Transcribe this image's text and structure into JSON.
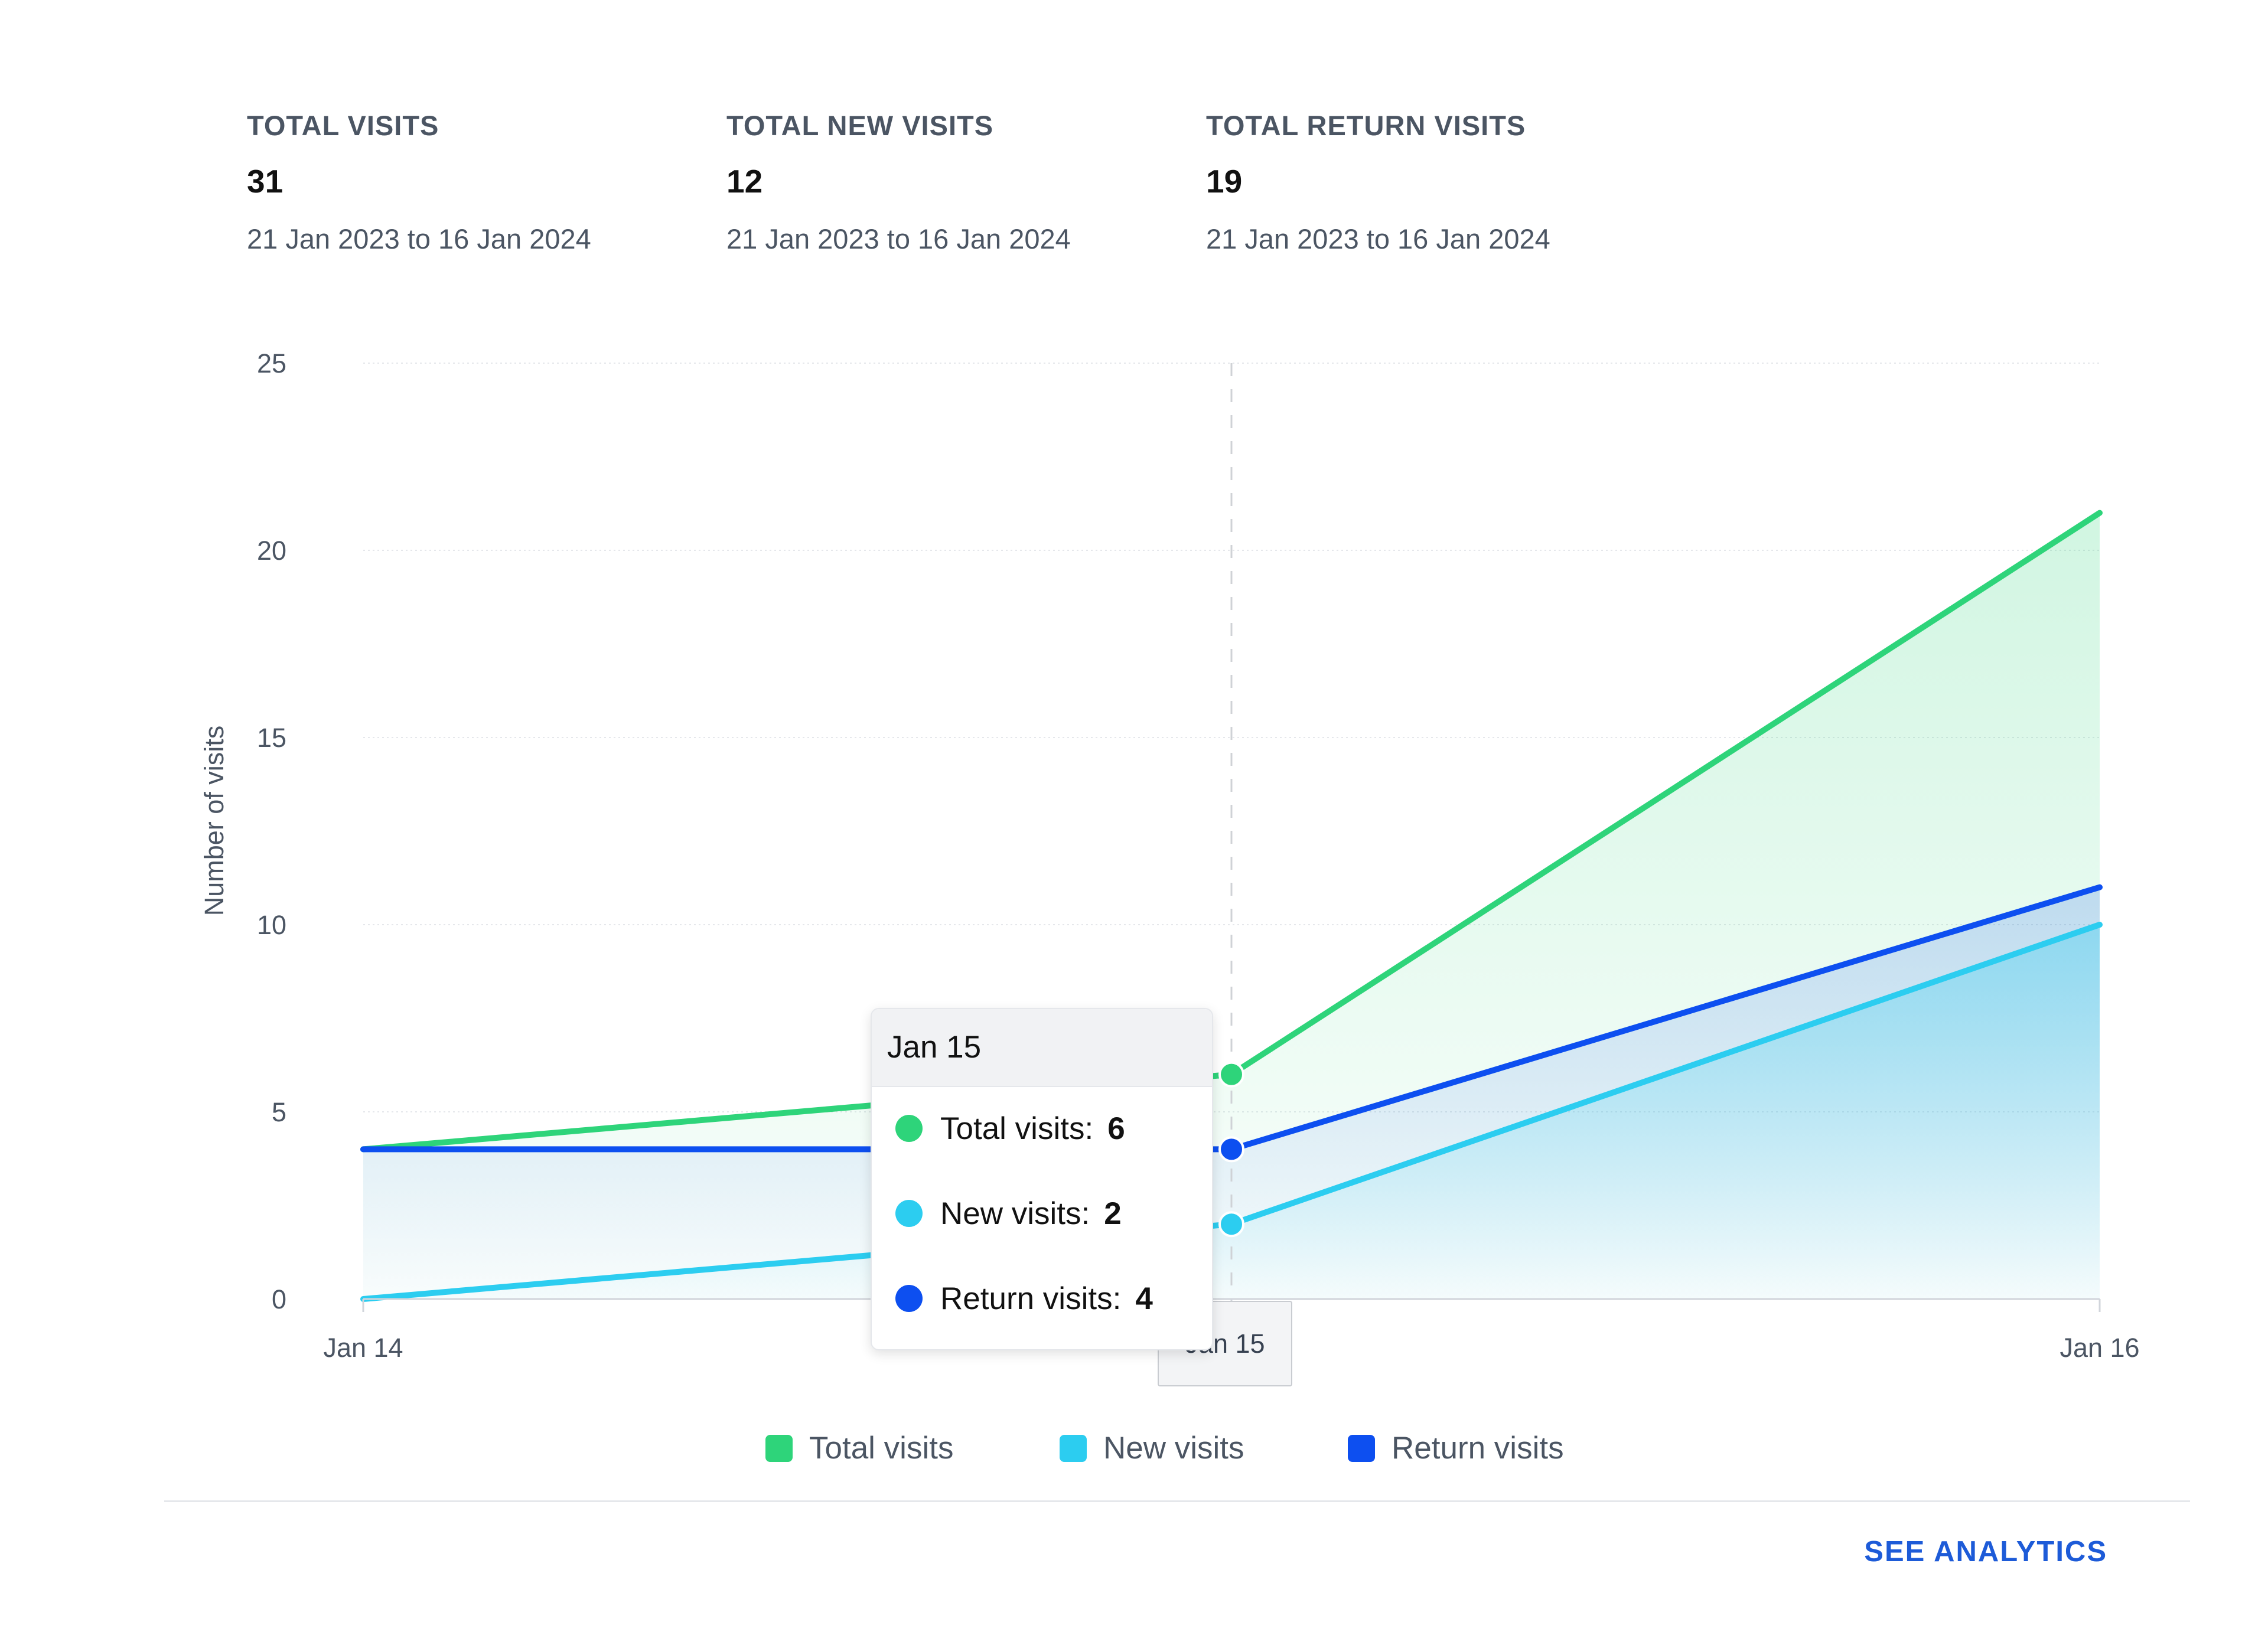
{
  "stats": [
    {
      "label": "TOTAL VISITS",
      "value": "31",
      "range": "21 Jan 2023 to 16 Jan 2024"
    },
    {
      "label": "TOTAL NEW VISITS",
      "value": "12",
      "range": "21 Jan 2023 to 16 Jan 2024"
    },
    {
      "label": "TOTAL RETURN VISITS",
      "value": "19",
      "range": "21 Jan 2023 to 16 Jan 2024"
    }
  ],
  "chart_data": {
    "type": "area",
    "categories": [
      "Jan 14",
      "Jan 15",
      "Jan 16"
    ],
    "ylabel": "Number of visits",
    "ylim": [
      0,
      25
    ],
    "yticks": [
      0,
      5,
      10,
      15,
      20,
      25
    ],
    "grid": true,
    "legend_position": "bottom",
    "series": [
      {
        "name": "Total visits",
        "color": "#2ed47a",
        "values": [
          4,
          6,
          21
        ]
      },
      {
        "name": "New visits",
        "color": "#2ccdf0",
        "values": [
          0,
          2,
          10
        ]
      },
      {
        "name": "Return visits",
        "color": "#0d4ff0",
        "values": [
          4,
          4,
          11
        ]
      }
    ]
  },
  "tooltip": {
    "title": "Jan 15",
    "rows": [
      {
        "label": "Total visits:",
        "value": "6",
        "color": "#2ed47a"
      },
      {
        "label": "New visits:",
        "value": "2",
        "color": "#2ccdf0"
      },
      {
        "label": "Return visits:",
        "value": "4",
        "color": "#0d4ff0"
      }
    ]
  },
  "hover_x_label": "Jan 15",
  "footer": {
    "see_analytics": "SEE ANALYTICS"
  }
}
